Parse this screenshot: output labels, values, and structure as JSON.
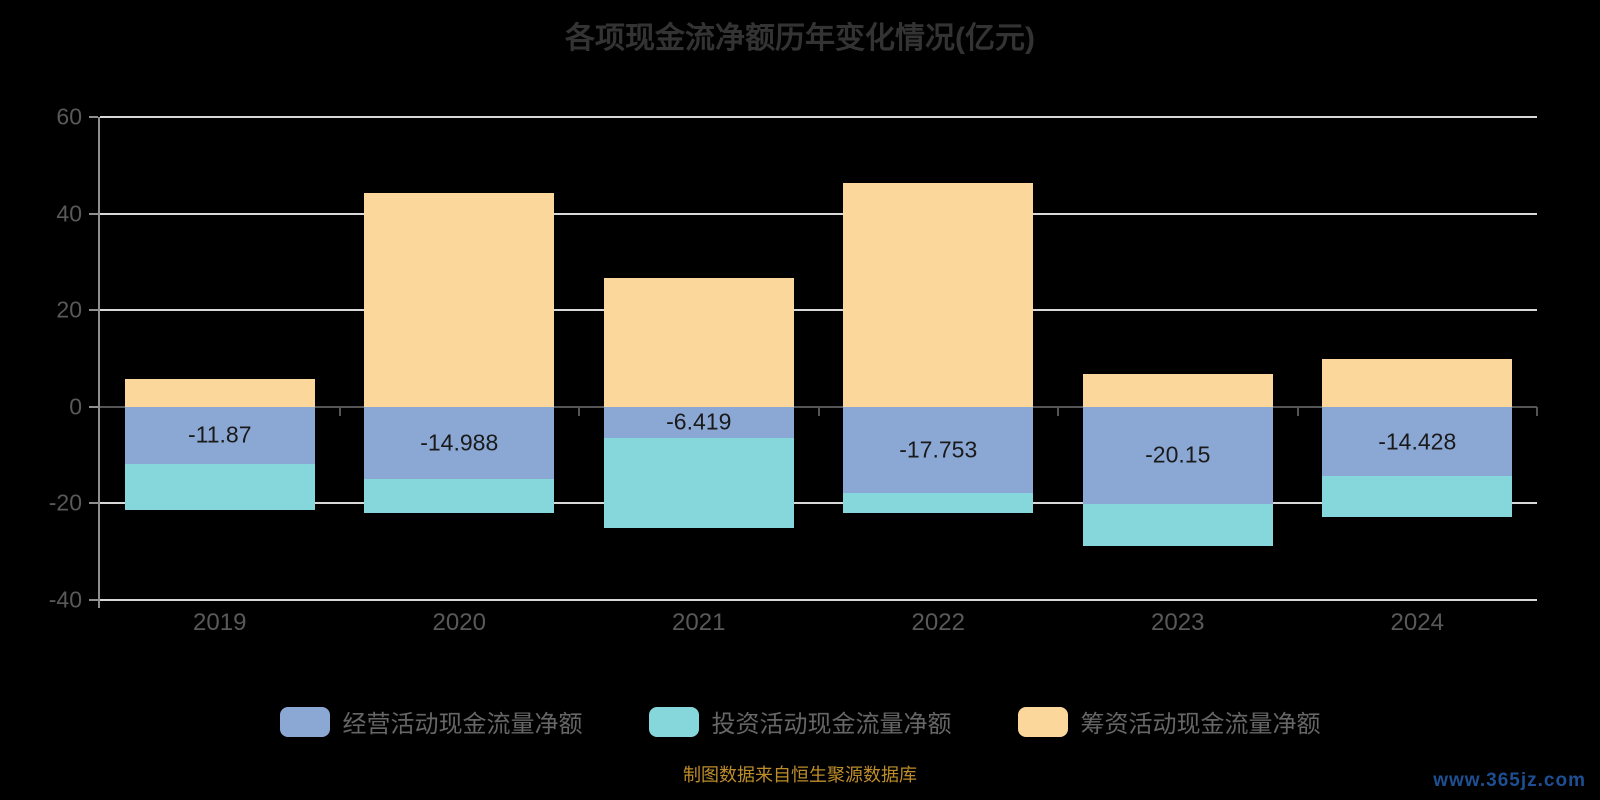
{
  "chart_data": {
    "type": "bar",
    "stacked": true,
    "title": "各项现金流净额历年变化情况(亿元)",
    "categories": [
      "2019",
      "2020",
      "2021",
      "2022",
      "2023",
      "2024"
    ],
    "series": [
      {
        "key": "operating",
        "name": "经营活动现金流量净额",
        "color": "#8BA8D5",
        "values": [
          -11.87,
          -14.988,
          -6.419,
          -17.753,
          -20.15,
          -14.428
        ],
        "labels": [
          "-11.87",
          "-14.988",
          "-6.419",
          "-17.753",
          "-20.15",
          "-14.428"
        ]
      },
      {
        "key": "investing",
        "name": "投资活动现金流量净额",
        "color": "#85D7DB",
        "values": [
          -9.5,
          -6.9,
          -18.7,
          -4.2,
          -8.6,
          -8.4
        ]
      },
      {
        "key": "financing",
        "name": "筹资活动现金流量净额",
        "color": "#FCD79B",
        "values": [
          5.8,
          44.2,
          26.6,
          46.4,
          6.7,
          10.0
        ]
      }
    ],
    "ylim": [
      -40,
      60
    ],
    "yticks": [
      60,
      40,
      20,
      0,
      -20,
      -40
    ],
    "grid": true,
    "legend_position": "bottom",
    "source_note": "制图数据来自恒生聚源数据库",
    "watermark": "www.365jz.com"
  },
  "styles": {
    "background": "#000000",
    "title_color": "#333333",
    "axis_label_color": "#595959",
    "gridline_color": "#d8d8d8",
    "axis_line_color": "#8f8f8f",
    "zero_line_color": "#555555",
    "bar_label_color": "#1a1a1a",
    "legend_text_color": "#666666",
    "source_note_color": "#BE8D2B",
    "watermark_color": "#1e4f92"
  }
}
